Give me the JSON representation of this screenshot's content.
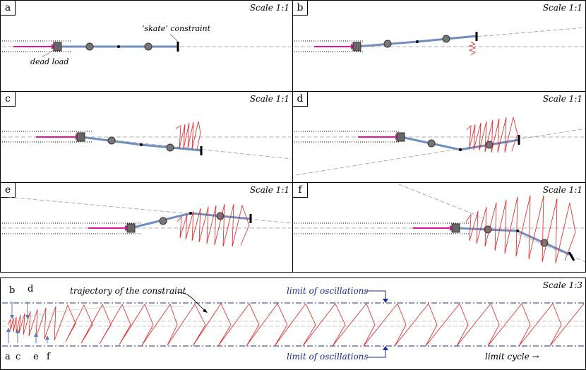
{
  "panels": [
    {
      "label": "a",
      "scale": "Scale 1:1"
    },
    {
      "label": "b",
      "scale": "Scale 1:1"
    },
    {
      "label": "c",
      "scale": "Scale 1:1"
    },
    {
      "label": "d",
      "scale": "Scale 1:1"
    },
    {
      "label": "e",
      "scale": "Scale 1:1"
    },
    {
      "label": "f",
      "scale": "Scale 1:1"
    }
  ],
  "annotations": {
    "skate": "‘skate’ constraint",
    "dead_load": "dead load"
  },
  "bottom": {
    "scale": "Scale 1:3",
    "trajectory": "trajectory of the constraint",
    "limit_top": "limit of oscillations",
    "limit_bottom": "limit of oscillations",
    "limit_cycle": "limit cycle →",
    "markers_top": [
      "b",
      "d"
    ],
    "markers_bottom": [
      "a",
      "c",
      "e",
      "f"
    ]
  },
  "colors": {
    "rod": "#6f8fbf",
    "load": "#e0169c",
    "traj": "#e02020",
    "limit": "#1f2a8c"
  }
}
